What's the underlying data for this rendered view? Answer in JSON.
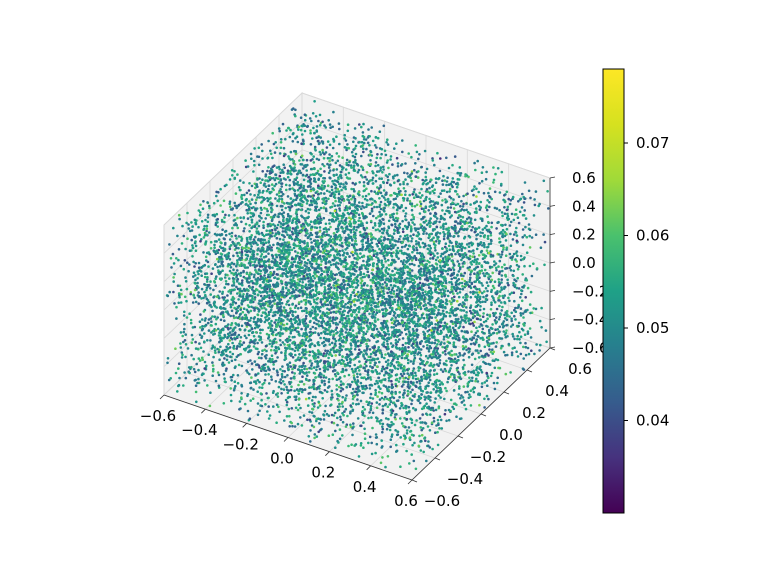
{
  "chart_data": {
    "type": "scatter",
    "projection": "3d",
    "xlim": [
      -0.6,
      0.6
    ],
    "ylim": [
      -0.6,
      0.6
    ],
    "zlim": [
      -0.6,
      0.6
    ],
    "x_ticks": [
      "−0.6",
      "−0.4",
      "−0.2",
      "0.0",
      "0.2",
      "0.4",
      "0.6"
    ],
    "y_ticks": [
      "−0.6",
      "−0.4",
      "−0.2",
      "0.0",
      "0.2",
      "0.4",
      "0.6"
    ],
    "z_ticks": [
      "−0.6",
      "−0.4",
      "−0.2",
      "0.0",
      "0.2",
      "0.4",
      "0.6"
    ],
    "grid": true,
    "point_count_approx": 9000,
    "point_distribution": "points filling a cube spanning about -0.6 to 0.6 on each axis",
    "color_values_range": [
      0.03,
      0.078
    ],
    "colormap": "viridis",
    "colorbar": {
      "min": 0.03,
      "max": 0.078,
      "ticks": [
        "0.04",
        "0.05",
        "0.06",
        "0.07"
      ],
      "tick_values": [
        0.04,
        0.05,
        0.06,
        0.07
      ],
      "placement": "right"
    },
    "pane_color": "#f2f2f2",
    "grid_color": "#d9d9d9"
  }
}
